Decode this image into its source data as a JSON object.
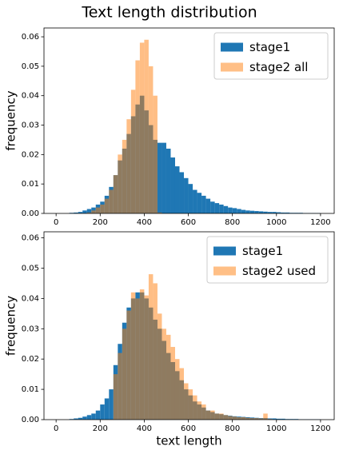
{
  "title": "Text length distribution",
  "chart_data": [
    {
      "type": "histogram",
      "ylabel": "frequency",
      "legend": "upper right",
      "bins": [
        40,
        60,
        80,
        100,
        120,
        140,
        160,
        180,
        200,
        220,
        240,
        260,
        280,
        300,
        320,
        340,
        360,
        380,
        400,
        420,
        440,
        460,
        480,
        500,
        520,
        540,
        560,
        580,
        600,
        620,
        640,
        660,
        680,
        700,
        720,
        740,
        760,
        780,
        800,
        820,
        840,
        860,
        880,
        900,
        920,
        940,
        960,
        980,
        1000,
        1020,
        1040,
        1060,
        1080,
        1100,
        1120,
        1140,
        1160,
        1180,
        1200
      ],
      "series": [
        {
          "name": "stage1",
          "color": "#1f77b4",
          "alpha": 1,
          "values": [
            0,
            0.0002,
            0.0003,
            0.0005,
            0.001,
            0.0015,
            0.002,
            0.003,
            0.004,
            0.006,
            0.009,
            0.013,
            0.018,
            0.022,
            0.027,
            0.033,
            0.037,
            0.04,
            0.035,
            0.03,
            0.025,
            0.024,
            0.024,
            0.022,
            0.019,
            0.016,
            0.014,
            0.012,
            0.01,
            0.008,
            0.007,
            0.006,
            0.005,
            0.004,
            0.0035,
            0.003,
            0.0025,
            0.002,
            0.0018,
            0.0015,
            0.0012,
            0.001,
            0.0009,
            0.0008,
            0.0007,
            0.0006,
            0.0005,
            0.0005,
            0.0004,
            0.0003,
            0.0003,
            0.0002,
            0.0002,
            0.0002,
            0.0001,
            0.0001,
            0.0001,
            0.0001
          ]
        },
        {
          "name": "stage2 all",
          "color": "#ff7f0e",
          "alpha": 0.5,
          "values": [
            0,
            0,
            0,
            0,
            0,
            0.0003,
            0.001,
            0.002,
            0.003,
            0.005,
            0.008,
            0.013,
            0.02,
            0.025,
            0.032,
            0.042,
            0.052,
            0.058,
            0.059,
            0.05,
            0.04,
            0.0003,
            0,
            0,
            0,
            0,
            0,
            0,
            0,
            0,
            0,
            0,
            0,
            0,
            0,
            0,
            0,
            0,
            0,
            0,
            0,
            0,
            0,
            0,
            0,
            0,
            0,
            0,
            0,
            0,
            0,
            0,
            0,
            0,
            0,
            0,
            0,
            0
          ]
        }
      ],
      "xlim": [
        -55,
        1262
      ],
      "xticks": [
        0,
        200,
        400,
        600,
        800,
        1000,
        1200
      ],
      "ylim": [
        0,
        0.063
      ],
      "yticks": [
        {
          "value": 0,
          "label": "0.00"
        },
        0.01,
        0.02,
        0.03,
        0.04,
        0.05,
        0.06
      ]
    },
    {
      "type": "histogram",
      "ylabel": "frequency",
      "xlabel": "text length",
      "legend": "upper right",
      "bins": [
        40,
        60,
        80,
        100,
        120,
        140,
        160,
        180,
        200,
        220,
        240,
        260,
        280,
        300,
        320,
        340,
        360,
        380,
        400,
        420,
        440,
        460,
        480,
        500,
        520,
        540,
        560,
        580,
        600,
        620,
        640,
        660,
        680,
        700,
        720,
        740,
        760,
        780,
        800,
        820,
        840,
        860,
        880,
        900,
        920,
        940,
        960,
        980,
        1000,
        1020,
        1040,
        1060,
        1080,
        1100,
        1120,
        1140,
        1160,
        1180,
        1200
      ],
      "series": [
        {
          "name": "stage1",
          "color": "#1f77b4",
          "alpha": 1,
          "values": [
            0,
            0.0002,
            0.0004,
            0.0006,
            0.001,
            0.0015,
            0.002,
            0.003,
            0.005,
            0.007,
            0.01,
            0.018,
            0.025,
            0.032,
            0.037,
            0.04,
            0.042,
            0.042,
            0.04,
            0.037,
            0.033,
            0.03,
            0.026,
            0.022,
            0.019,
            0.016,
            0.013,
            0.01,
            0.008,
            0.006,
            0.005,
            0.004,
            0.003,
            0.0025,
            0.002,
            0.0018,
            0.0015,
            0.0013,
            0.0011,
            0.001,
            0.0009,
            0.0008,
            0.0007,
            0.0006,
            0.0005,
            0.0005,
            0.0004,
            0.0004,
            0.0003,
            0.0003,
            0.0002,
            0.0002,
            0.0002,
            0.0001,
            0.0001,
            0.0001,
            0.0001,
            0.0001
          ]
        },
        {
          "name": "stage2 used",
          "color": "#ff7f0e",
          "alpha": 0.5,
          "values": [
            0,
            0,
            0,
            0,
            0,
            0,
            0,
            0,
            0,
            0,
            0,
            0.015,
            0.022,
            0.03,
            0.036,
            0.042,
            0.04,
            0.043,
            0.041,
            0.048,
            0.045,
            0.035,
            0.03,
            0.028,
            0.024,
            0.02,
            0.017,
            0.012,
            0.01,
            0.008,
            0.006,
            0.005,
            0.003,
            0.003,
            0.002,
            0.002,
            0.0015,
            0.0012,
            0.001,
            0.0008,
            0.0008,
            0.0006,
            0.0005,
            0.0005,
            0.0004,
            0.002,
            0.0002,
            0,
            0,
            0,
            0,
            0,
            0,
            0,
            0,
            0,
            0,
            0
          ]
        }
      ],
      "xlim": [
        -55,
        1262
      ],
      "xticks": [
        0,
        200,
        400,
        600,
        800,
        1000,
        1200
      ],
      "ylim": [
        0,
        0.062
      ],
      "yticks": [
        {
          "value": 0,
          "label": "0.00"
        },
        0.01,
        0.02,
        0.03,
        0.04,
        0.05,
        0.06
      ]
    }
  ]
}
